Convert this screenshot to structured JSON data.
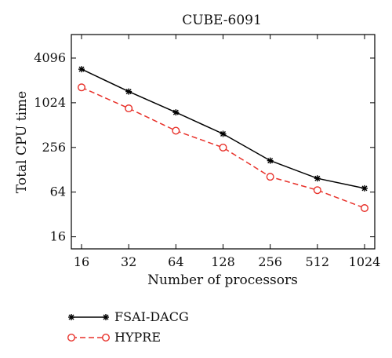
{
  "chart_data": {
    "type": "line",
    "title": "CUBE-6091",
    "xlabel": "Number of processors",
    "ylabel": "Total CPU time",
    "x_scale": "log2",
    "y_scale": "log2",
    "categories": [
      "16",
      "32",
      "64",
      "128",
      "256",
      "512",
      "1024"
    ],
    "x": [
      16,
      32,
      64,
      128,
      256,
      512,
      1024
    ],
    "yticks": [
      16,
      64,
      256,
      1024,
      4096
    ],
    "ytick_labels": [
      "16",
      "64",
      "256",
      "1024",
      "4096"
    ],
    "ylim": [
      11,
      8500
    ],
    "grid": false,
    "legend_position": "bottom-left",
    "series": [
      {
        "name": "FSAI-DACG",
        "values": [
          2900,
          1450,
          760,
          390,
          170,
          98,
          72
        ],
        "color": "#000000",
        "line_style": "solid",
        "marker": "asterisk"
      },
      {
        "name": "HYPRE",
        "values": [
          1650,
          860,
          430,
          255,
          103,
          68,
          39
        ],
        "color": "#e8312a",
        "line_style": "dashed",
        "marker": "circle"
      }
    ]
  }
}
